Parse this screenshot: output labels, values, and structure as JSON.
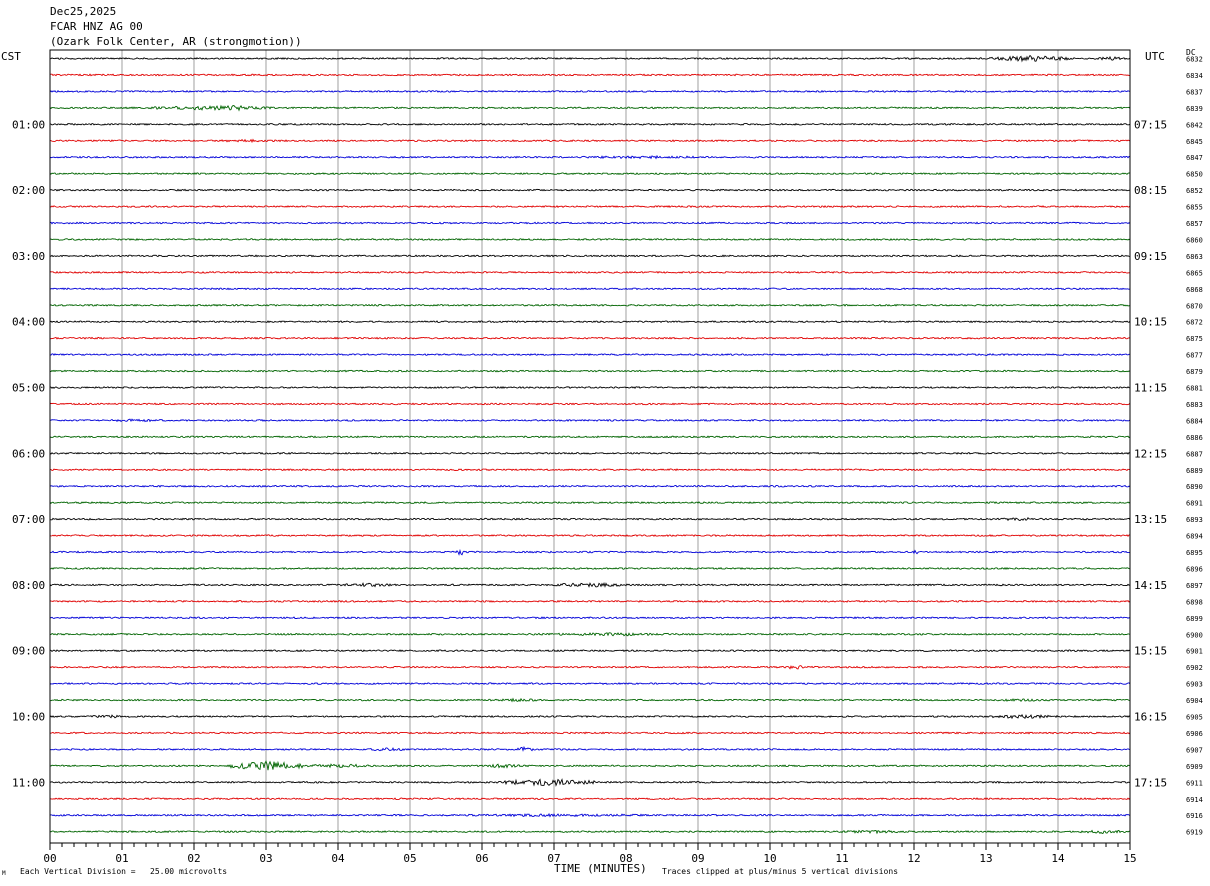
{
  "header": {
    "date": "Dec25,2025",
    "station": "FCAR HNZ AG 00",
    "location": "(Ozark Folk Center, AR (strongmotion))"
  },
  "corner_labels": {
    "left": "CST",
    "right": "UTC",
    "far_right": "DC"
  },
  "footer": {
    "scale_note": "Each Vertical Division =   25.00 microvolts",
    "clip_note": "Traces clipped at plus/minus 5 vertical divisions",
    "corner_mark": "M"
  },
  "colors": {
    "trace_cycle": [
      "#000000",
      "#e00000",
      "#0000d8",
      "#006400"
    ],
    "grid": "#888888"
  },
  "chart_data": {
    "type": "line",
    "title": "FCAR HNZ AG 00",
    "xlabel": "TIME (MINUTES)",
    "x_ticks": [
      "00",
      "01",
      "02",
      "03",
      "04",
      "05",
      "06",
      "07",
      "08",
      "09",
      "10",
      "11",
      "12",
      "13",
      "14",
      "15"
    ],
    "xlim": [
      0,
      15
    ],
    "minutes_per_trace": 15,
    "left_hour_labels": [
      "01:00",
      "02:00",
      "03:00",
      "04:00",
      "05:00",
      "06:00",
      "07:00",
      "08:00",
      "09:00",
      "10:00",
      "11:00"
    ],
    "right_hour_labels": [
      "07:15",
      "08:15",
      "09:15",
      "10:15",
      "11:15",
      "12:15",
      "13:15",
      "14:15",
      "15:15",
      "16:15",
      "17:15"
    ],
    "dc_offsets": [
      "6832",
      "6834",
      "6837",
      "6839",
      "6842",
      "6845",
      "6847",
      "6850",
      "6852",
      "6855",
      "6857",
      "6860",
      "6863",
      "6865",
      "6868",
      "6870",
      "6872",
      "6875",
      "6877",
      "6879",
      "6881",
      "6883",
      "6884",
      "6886",
      "6887",
      "6889",
      "6890",
      "6891",
      "6893",
      "6894",
      "6895",
      "6896",
      "6897",
      "6898",
      "6899",
      "6900",
      "6901",
      "6902",
      "6903",
      "6904",
      "6905",
      "6906",
      "6907",
      "6909",
      "6911",
      "6914",
      "6916",
      "6919"
    ],
    "events": [
      {
        "trace": 0,
        "start_min": 13.0,
        "end_min": 14.2,
        "amp": 3.0
      },
      {
        "trace": 0,
        "start_min": 14.5,
        "end_min": 15.0,
        "amp": 1.8
      },
      {
        "trace": 3,
        "start_min": 1.2,
        "end_min": 3.2,
        "amp": 2.2
      },
      {
        "trace": 3,
        "start_min": 2.4,
        "end_min": 2.8,
        "amp": 3.2
      },
      {
        "trace": 5,
        "start_min": 2.0,
        "end_min": 3.5,
        "amp": 1.3
      },
      {
        "trace": 6,
        "start_min": 7.0,
        "end_min": 9.5,
        "amp": 1.4
      },
      {
        "trace": 18,
        "start_min": 12.8,
        "end_min": 13.1,
        "amp": 1.5
      },
      {
        "trace": 22,
        "start_min": 0.6,
        "end_min": 1.8,
        "amp": 1.4
      },
      {
        "trace": 28,
        "start_min": 13.0,
        "end_min": 14.0,
        "amp": 1.6
      },
      {
        "trace": 30,
        "start_min": 5.65,
        "end_min": 5.75,
        "amp": 4.5
      },
      {
        "trace": 30,
        "start_min": 12.0,
        "end_min": 12.1,
        "amp": 3.0
      },
      {
        "trace": 32,
        "start_min": 4.0,
        "end_min": 4.8,
        "amp": 2.0
      },
      {
        "trace": 32,
        "start_min": 7.0,
        "end_min": 8.0,
        "amp": 2.4
      },
      {
        "trace": 35,
        "start_min": 6.5,
        "end_min": 9.0,
        "amp": 1.6
      },
      {
        "trace": 37,
        "start_min": 10.2,
        "end_min": 10.5,
        "amp": 2.2
      },
      {
        "trace": 39,
        "start_min": 6.0,
        "end_min": 7.0,
        "amp": 1.5
      },
      {
        "trace": 39,
        "start_min": 13.0,
        "end_min": 14.0,
        "amp": 1.5
      },
      {
        "trace": 40,
        "start_min": 0.5,
        "end_min": 1.2,
        "amp": 1.5
      },
      {
        "trace": 40,
        "start_min": 13.0,
        "end_min": 14.0,
        "amp": 2.0
      },
      {
        "trace": 42,
        "start_min": 4.3,
        "end_min": 5.0,
        "amp": 1.6
      },
      {
        "trace": 42,
        "start_min": 6.5,
        "end_min": 6.7,
        "amp": 3.0
      },
      {
        "trace": 43,
        "start_min": 2.5,
        "end_min": 3.5,
        "amp": 4.8
      },
      {
        "trace": 43,
        "start_min": 3.5,
        "end_min": 4.5,
        "amp": 2.0
      },
      {
        "trace": 43,
        "start_min": 6.0,
        "end_min": 6.6,
        "amp": 2.0
      },
      {
        "trace": 44,
        "start_min": 6.2,
        "end_min": 7.6,
        "amp": 3.5
      },
      {
        "trace": 46,
        "start_min": 5.0,
        "end_min": 9.0,
        "amp": 1.4
      },
      {
        "trace": 47,
        "start_min": 10.8,
        "end_min": 12.0,
        "amp": 1.6
      },
      {
        "trace": 47,
        "start_min": 14.2,
        "end_min": 15.0,
        "amp": 1.8
      }
    ]
  }
}
